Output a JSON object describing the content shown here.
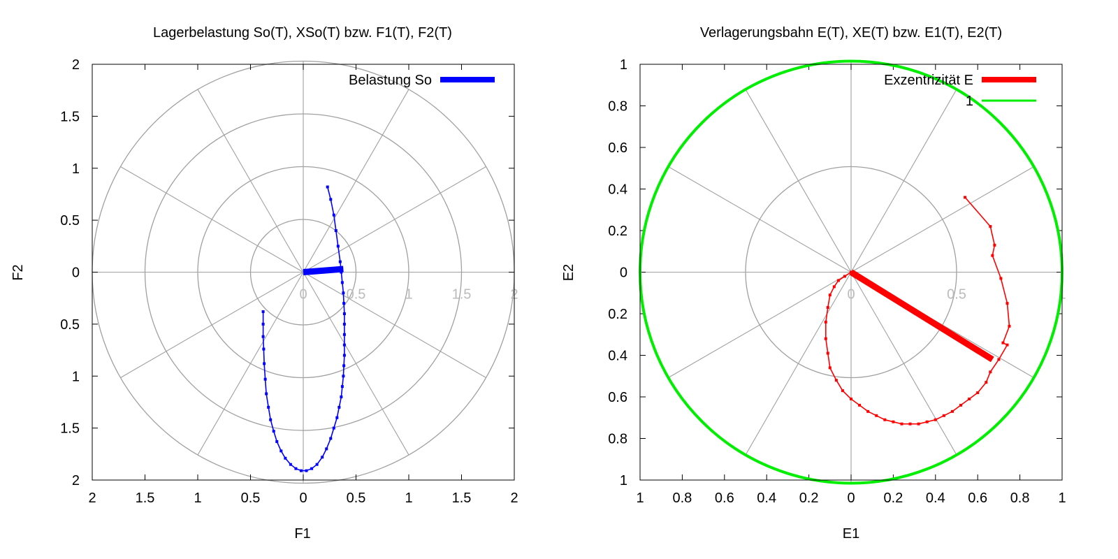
{
  "chart_data": [
    {
      "type": "line",
      "polar_grid": true,
      "title": "Lagerbelastung So(T), XSo(T) bzw. F1(T), F2(T)",
      "xlabel": "F1",
      "ylabel": "F2",
      "xlim": [
        -2,
        2
      ],
      "ylim": [
        -2,
        2
      ],
      "xticks": [
        -2,
        -1.5,
        -1,
        -0.5,
        0,
        0.5,
        1,
        1.5,
        2
      ],
      "xtick_labels": [
        "2",
        "1.5",
        "1",
        "0.5",
        "0",
        "0.5",
        "1",
        "1.5",
        "2"
      ],
      "yticks": [
        2,
        1.5,
        1,
        0.5,
        0,
        -0.5,
        -1,
        -1.5,
        -2
      ],
      "ytick_labels": [
        "2",
        "1.5",
        "1",
        "0.5",
        "0",
        "0.5",
        "1",
        "1.5",
        "2"
      ],
      "grid_radii": [
        0.5,
        1,
        1.5,
        2
      ],
      "grid_radial_labels": [
        "0",
        "0.5",
        "1",
        "1.5",
        "2"
      ],
      "legend": [
        {
          "label": "Belastung So",
          "color": "#0000ff"
        }
      ],
      "series": [
        {
          "name": "Belastung So",
          "color": "#0000ff",
          "style": "vector",
          "x": [
            0,
            0.38
          ],
          "y": [
            0,
            0.03
          ]
        },
        {
          "style": "trajectory",
          "color": "#0000ff",
          "x": [
            0.23,
            0.26,
            0.29,
            0.31,
            0.33,
            0.35,
            0.36,
            0.37,
            0.38,
            0.385,
            0.39,
            0.39,
            0.39,
            0.39,
            0.39,
            0.385,
            0.38,
            0.37,
            0.36,
            0.34,
            0.32,
            0.29,
            0.26,
            0.22,
            0.18,
            0.13,
            0.08,
            0.03,
            -0.02,
            -0.07,
            -0.12,
            -0.17,
            -0.21,
            -0.25,
            -0.28,
            -0.31,
            -0.33,
            -0.35,
            -0.36,
            -0.37,
            -0.375,
            -0.38,
            -0.38,
            -0.38
          ],
          "y": [
            0.82,
            0.7,
            0.55,
            0.4,
            0.25,
            0.1,
            0.0,
            -0.1,
            -0.2,
            -0.3,
            -0.4,
            -0.5,
            -0.6,
            -0.7,
            -0.8,
            -0.9,
            -1.0,
            -1.1,
            -1.2,
            -1.3,
            -1.4,
            -1.5,
            -1.6,
            -1.7,
            -1.78,
            -1.85,
            -1.89,
            -1.91,
            -1.91,
            -1.89,
            -1.85,
            -1.79,
            -1.72,
            -1.63,
            -1.53,
            -1.42,
            -1.3,
            -1.17,
            -1.03,
            -0.88,
            -0.74,
            -0.62,
            -0.5,
            -0.38
          ]
        }
      ]
    },
    {
      "type": "line",
      "polar_grid": true,
      "title": "Verlagerungsbahn E(T), XE(T) bzw. E1(T), E2(T)",
      "xlabel": "E1",
      "ylabel": "E2",
      "xlim": [
        -1,
        1
      ],
      "ylim": [
        -1,
        1
      ],
      "xticks": [
        -1,
        -0.8,
        -0.6,
        -0.4,
        -0.2,
        0,
        0.2,
        0.4,
        0.6,
        0.8,
        1
      ],
      "xtick_labels": [
        "1",
        "0.8",
        "0.6",
        "0.4",
        "0.2",
        "0",
        "0.2",
        "0.4",
        "0.6",
        "0.8",
        "1"
      ],
      "yticks": [
        1,
        0.8,
        0.6,
        0.4,
        0.2,
        0,
        -0.2,
        -0.4,
        -0.6,
        -0.8,
        -1
      ],
      "ytick_labels": [
        "1",
        "0.8",
        "0.6",
        "0.4",
        "0.2",
        "0",
        "0.2",
        "0.4",
        "0.6",
        "0.8",
        "1"
      ],
      "grid_radii": [
        0.5,
        1
      ],
      "grid_radial_labels": [
        "0",
        "0.5",
        "1"
      ],
      "legend": [
        {
          "label": "Exzentrizität E",
          "color": "#ff0000"
        },
        {
          "label": "1",
          "color": "#00ee00"
        }
      ],
      "series": [
        {
          "name": "Exzentrizität E",
          "color": "#ff0000",
          "style": "vector",
          "x": [
            0,
            0.67
          ],
          "y": [
            0,
            -0.42
          ]
        },
        {
          "name": "1",
          "color": "#00ee00",
          "style": "circle",
          "radius": 1
        },
        {
          "style": "trajectory",
          "color": "#ff0000",
          "x": [
            0.54,
            0.66,
            0.68,
            0.67,
            0.71,
            0.74,
            0.75,
            0.72,
            0.74,
            0.7,
            0.66,
            0.64,
            0.6,
            0.56,
            0.52,
            0.48,
            0.44,
            0.4,
            0.36,
            0.32,
            0.28,
            0.24,
            0.2,
            0.16,
            0.12,
            0.08,
            0.04,
            0.0,
            -0.04,
            -0.07,
            -0.1,
            -0.11,
            -0.12,
            -0.12,
            -0.11,
            -0.1,
            -0.08,
            -0.06,
            -0.03,
            0.0
          ],
          "y": [
            0.36,
            0.22,
            0.13,
            0.08,
            -0.03,
            -0.15,
            -0.26,
            -0.34,
            -0.35,
            -0.42,
            -0.48,
            -0.53,
            -0.58,
            -0.61,
            -0.64,
            -0.67,
            -0.69,
            -0.71,
            -0.72,
            -0.73,
            -0.73,
            -0.73,
            -0.72,
            -0.71,
            -0.69,
            -0.67,
            -0.64,
            -0.61,
            -0.57,
            -0.52,
            -0.46,
            -0.39,
            -0.32,
            -0.24,
            -0.17,
            -0.11,
            -0.07,
            -0.04,
            -0.02,
            0.0
          ]
        }
      ]
    }
  ]
}
